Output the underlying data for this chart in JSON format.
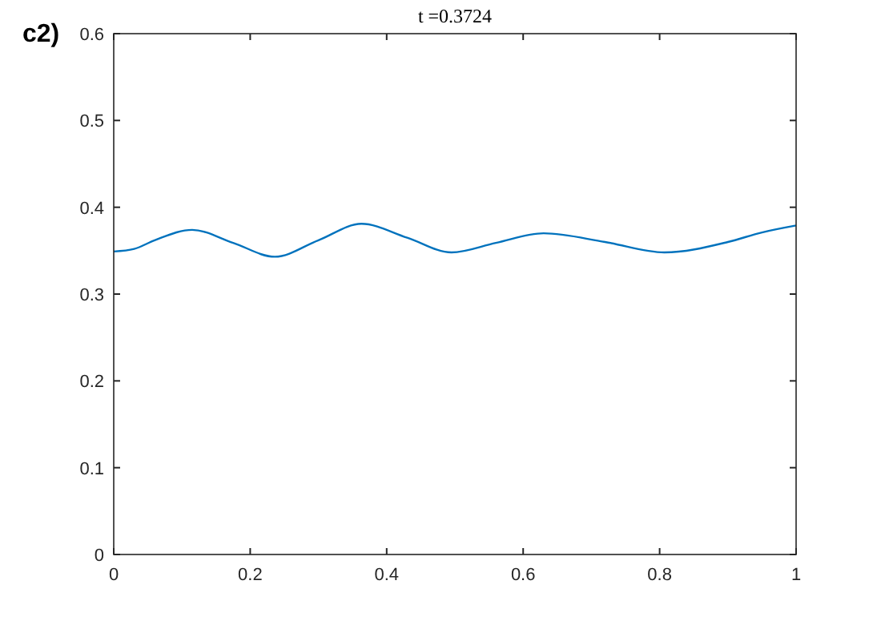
{
  "chart_data": {
    "type": "line",
    "title": "t =0.3724",
    "annotations": [
      "c2)"
    ],
    "series": [
      {
        "color": "#0072bd",
        "x": [
          0,
          0.03,
          0.06,
          0.115,
          0.175,
          0.236,
          0.3,
          0.363,
          0.43,
          0.495,
          0.56,
          0.63,
          0.72,
          0.807,
          0.9,
          0.95,
          1
        ],
        "values": [
          0.349,
          0.352,
          0.362,
          0.374,
          0.359,
          0.343,
          0.362,
          0.381,
          0.365,
          0.348,
          0.359,
          0.37,
          0.36,
          0.348,
          0.36,
          0.371,
          0.379
        ]
      }
    ],
    "xlim": [
      0,
      1
    ],
    "ylim": [
      0,
      0.6
    ],
    "xticks": [
      0,
      0.2,
      0.4,
      0.6,
      0.8,
      1
    ],
    "yticks": [
      0,
      0.1,
      0.2,
      0.3,
      0.4,
      0.5,
      0.6
    ],
    "grid": false
  }
}
